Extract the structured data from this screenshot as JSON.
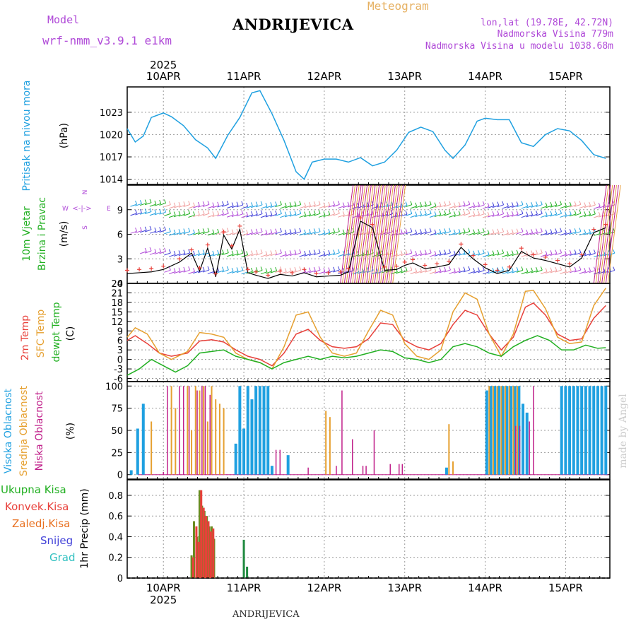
{
  "header": {
    "model_label": "Model",
    "model_name": "wrf-nmm_v3.9.1  e1km",
    "station": "ANDRIJEVICA",
    "title": "Meteogram",
    "lonlat": "lon,lat (19.78E, 42.72N)",
    "altitude": "Nadmorska Visina 779m",
    "model_altitude": "Nadmorska Visina u modelu 1038.68m",
    "footer_station": "ANDRIJEVICA",
    "watermark": "made by Angel"
  },
  "colors": {
    "purple": "#b04ad8",
    "cyan": "#1fa0e0",
    "green": "#22b022",
    "red": "#e8403a",
    "orange": "#e6a030",
    "magenta": "#c0208a",
    "blue": "#4040d8",
    "teal": "#30c0c0"
  },
  "time_axis": {
    "year": "2025",
    "days": [
      "10APR",
      "11APR",
      "12APR",
      "13APR",
      "14APR",
      "15APR"
    ],
    "start_day_offset": -0.45,
    "end_day_offset": 5.55
  },
  "panel_labels": {
    "pressure": [
      "Pritisak na nivou mora",
      "(hPa)"
    ],
    "wind": [
      "10m Vjetar",
      "Brzina i Pravac",
      "(m/s)"
    ],
    "wind_compass": {
      "w": "W",
      "e": "E",
      "n": "N",
      "s": "S"
    },
    "temp": [
      "2m Temp",
      "SFC Temp",
      "dewpt Temp",
      "(C)"
    ],
    "cloud": [
      "Visoka Oblacnost",
      "Srednja Oblacnost",
      "Niska Oblacnost",
      "(%)"
    ],
    "precip_legend": [
      "Ukupna Kisa",
      "Konvek.Kisa",
      "Zaledj.Kisa",
      "Snijeg",
      "Grad"
    ],
    "precip_unit": "1hr Precip (mm)"
  },
  "chart_data": [
    {
      "type": "line",
      "name": "pressure",
      "ylabel": "(hPa)",
      "ylim": [
        1013.3,
        1026.4
      ],
      "yticks": [
        1014,
        1017,
        1020,
        1023
      ],
      "grid": true,
      "series": [
        {
          "name": "Pritisak na nivou mora",
          "x": [
            -0.45,
            -0.35,
            -0.25,
            -0.15,
            0,
            0.1,
            0.25,
            0.4,
            0.55,
            0.65,
            0.8,
            0.95,
            1.0,
            1.1,
            1.2,
            1.35,
            1.5,
            1.65,
            1.75,
            1.85,
            2.0,
            2.15,
            2.3,
            2.45,
            2.6,
            2.75,
            2.9,
            3.05,
            3.2,
            3.35,
            3.5,
            3.6,
            3.75,
            3.9,
            4.0,
            4.15,
            4.3,
            4.45,
            4.6,
            4.75,
            4.9,
            5.05,
            5.2,
            5.35,
            5.5
          ],
          "y": [
            1020.8,
            1019.0,
            1019.8,
            1022.3,
            1022.9,
            1022.4,
            1021.2,
            1019.3,
            1018.2,
            1016.8,
            1019.9,
            1022.3,
            1023.4,
            1025.6,
            1025.9,
            1022.8,
            1019.2,
            1015.0,
            1014.0,
            1016.3,
            1016.7,
            1016.7,
            1016.3,
            1016.9,
            1015.8,
            1016.3,
            1017.9,
            1020.3,
            1021.0,
            1020.4,
            1017.9,
            1016.8,
            1018.6,
            1021.8,
            1022.2,
            1022.0,
            1022.0,
            1018.9,
            1018.4,
            1020.0,
            1020.8,
            1020.5,
            1019.2,
            1017.3,
            1016.8
          ]
        }
      ]
    },
    {
      "type": "line",
      "name": "wind",
      "ylabel": "(m/s)",
      "ylim": [
        0,
        12
      ],
      "yticks": [
        0,
        3,
        6,
        9
      ],
      "grid": true,
      "series": [
        {
          "name": "wind speed",
          "x": [
            -0.45,
            -0.3,
            -0.15,
            0,
            0.2,
            0.35,
            0.45,
            0.55,
            0.65,
            0.75,
            0.85,
            0.95,
            1.05,
            1.15,
            1.3,
            1.45,
            1.6,
            1.75,
            1.9,
            2.05,
            2.2,
            2.3,
            2.45,
            2.6,
            2.75,
            2.9,
            3.0,
            3.1,
            3.25,
            3.4,
            3.55,
            3.7,
            3.85,
            4.0,
            4.15,
            4.3,
            4.45,
            4.6,
            4.75,
            4.9,
            5.05,
            5.2,
            5.35,
            5.5
          ],
          "y": [
            1.2,
            1.3,
            1.4,
            1.7,
            2.6,
            3.7,
            1.5,
            4.3,
            0.8,
            5.9,
            4.2,
            6.6,
            1.3,
            1.0,
            0.6,
            1.1,
            0.9,
            1.3,
            0.8,
            0.9,
            1.0,
            1.4,
            7.6,
            6.8,
            1.6,
            1.7,
            2.2,
            2.5,
            1.8,
            2.0,
            2.3,
            4.4,
            3.0,
            1.9,
            1.2,
            1.6,
            3.9,
            3.1,
            2.8,
            2.4,
            2.0,
            3.1,
            6.2,
            6.8
          ]
        }
      ]
    },
    {
      "type": "line",
      "name": "temperature",
      "ylabel": "(C)",
      "ylim": [
        -7,
        24
      ],
      "yticks": [
        -6,
        -3,
        0,
        3,
        6,
        9,
        12,
        15,
        18,
        21,
        24
      ],
      "grid": true,
      "series": [
        {
          "name": "2m Temp",
          "x": [
            -0.45,
            -0.35,
            -0.2,
            -0.05,
            0.1,
            0.3,
            0.45,
            0.6,
            0.75,
            0.9,
            1.05,
            1.2,
            1.35,
            1.5,
            1.65,
            1.8,
            1.95,
            2.1,
            2.25,
            2.4,
            2.55,
            2.7,
            2.85,
            3.0,
            3.15,
            3.3,
            3.45,
            3.6,
            3.75,
            3.9,
            4.05,
            4.2,
            4.35,
            4.5,
            4.6,
            4.75,
            4.9,
            5.05,
            5.2,
            5.35,
            5.5
          ],
          "y": [
            6,
            7.5,
            5,
            2,
            1,
            2,
            5.8,
            6.2,
            5.5,
            3,
            1,
            0,
            -2,
            2,
            8,
            9.5,
            6,
            4,
            3.5,
            4,
            6.5,
            11.5,
            11,
            6,
            4,
            3,
            5,
            11,
            15.5,
            14,
            8,
            3,
            7,
            16.5,
            17.8,
            14,
            8,
            6,
            6.5,
            13,
            17
          ]
        },
        {
          "name": "SFC Temp",
          "x": [
            -0.45,
            -0.35,
            -0.2,
            -0.05,
            0.1,
            0.3,
            0.45,
            0.6,
            0.75,
            0.9,
            1.05,
            1.2,
            1.35,
            1.5,
            1.65,
            1.8,
            1.95,
            2.1,
            2.25,
            2.4,
            2.55,
            2.7,
            2.85,
            3.0,
            3.15,
            3.3,
            3.45,
            3.6,
            3.75,
            3.9,
            4.05,
            4.2,
            4.35,
            4.5,
            4.6,
            4.75,
            4.9,
            5.05,
            5.2,
            5.35,
            5.5
          ],
          "y": [
            7,
            10,
            8,
            2,
            0,
            2.5,
            8.5,
            8,
            7,
            2,
            0,
            -1,
            -3,
            4,
            14,
            15,
            7,
            2,
            1,
            2,
            9,
            15.5,
            14,
            5,
            1,
            0,
            3,
            15,
            21,
            19,
            8,
            1,
            8,
            21.5,
            21.8,
            16,
            7,
            5,
            5.5,
            17,
            22.5
          ]
        },
        {
          "name": "dewpt Temp",
          "x": [
            -0.45,
            -0.3,
            -0.15,
            0,
            0.15,
            0.3,
            0.45,
            0.6,
            0.75,
            0.9,
            1.05,
            1.2,
            1.35,
            1.5,
            1.65,
            1.8,
            1.95,
            2.1,
            2.25,
            2.4,
            2.55,
            2.7,
            2.85,
            3.0,
            3.15,
            3.3,
            3.45,
            3.6,
            3.75,
            3.9,
            4.05,
            4.2,
            4.35,
            4.5,
            4.65,
            4.8,
            4.95,
            5.1,
            5.25,
            5.4,
            5.5
          ],
          "y": [
            -5,
            -3,
            0,
            -2,
            -4,
            -2,
            2,
            2.5,
            3,
            1,
            0,
            -1,
            -3,
            -1,
            0,
            1,
            0,
            1,
            0.5,
            1,
            2,
            3,
            2.5,
            0.5,
            0,
            -1,
            0,
            4,
            5,
            4,
            2,
            1,
            4,
            6,
            7.5,
            6,
            3,
            3,
            4.5,
            3.5,
            3.7
          ]
        }
      ]
    },
    {
      "type": "bar",
      "name": "cloud_cover",
      "ylabel": "(%)",
      "ylim": [
        -5,
        105
      ],
      "yticks": [
        0,
        25,
        50,
        75,
        100
      ],
      "grid": true,
      "series": [
        {
          "name": "Visoka Oblacnost",
          "x": [
            -0.4,
            -0.32,
            -0.25,
            0.9,
            0.95,
            1.0,
            1.05,
            1.1,
            1.15,
            1.2,
            1.25,
            1.3,
            1.35,
            1.55,
            3.52,
            4.02,
            4.07,
            4.12,
            4.17,
            4.22,
            4.27,
            4.32,
            4.37,
            4.42,
            4.47,
            4.52,
            4.95,
            5.0,
            5.05,
            5.1,
            5.15,
            5.2,
            5.25,
            5.3,
            5.35,
            5.4,
            5.45,
            5.5
          ],
          "y": [
            5,
            52,
            80,
            35,
            100,
            52,
            100,
            85,
            100,
            100,
            100,
            100,
            10,
            22,
            8,
            95,
            100,
            100,
            100,
            100,
            100,
            100,
            100,
            100,
            80,
            70,
            100,
            100,
            100,
            100,
            100,
            100,
            100,
            100,
            100,
            100,
            100,
            100
          ]
        },
        {
          "name": "Srednja Oblacnost",
          "x": [
            -0.15,
            0.1,
            0.15,
            0.3,
            0.35,
            0.4,
            0.45,
            0.5,
            0.55,
            0.6,
            0.65,
            0.7,
            0.75,
            2.02,
            2.07,
            3.55,
            3.6,
            4.05,
            4.1,
            4.15,
            4.2,
            4.25,
            4.3,
            4.35,
            4.4
          ],
          "y": [
            60,
            100,
            75,
            100,
            50,
            100,
            95,
            100,
            60,
            100,
            85,
            80,
            75,
            72,
            65,
            57,
            15,
            100,
            100,
            100,
            100,
            100,
            100,
            100,
            100
          ]
        },
        {
          "name": "Niska Oblacnost",
          "x": [
            0.0,
            0.05,
            0.2,
            0.25,
            0.32,
            0.42,
            0.48,
            0.52,
            0.58,
            1.4,
            1.45,
            1.8,
            2.15,
            2.22,
            2.35,
            2.48,
            2.52,
            2.62,
            2.82,
            2.93,
            2.97,
            4.38,
            4.43,
            4.55,
            4.6
          ],
          "y": [
            3,
            100,
            100,
            100,
            100,
            95,
            100,
            100,
            90,
            28,
            28,
            8,
            10,
            95,
            40,
            10,
            10,
            50,
            12,
            12,
            12,
            55,
            55,
            60,
            100
          ]
        }
      ]
    },
    {
      "type": "bar",
      "name": "precipitation",
      "ylabel": "1hr Precip (mm)",
      "ylim": [
        0,
        0.95
      ],
      "yticks": [
        0,
        0.2,
        0.4,
        0.6,
        0.8
      ],
      "grid": true,
      "series": [
        {
          "name": "Ukupna Kisa",
          "x": [
            0.35,
            0.38,
            0.42,
            0.45,
            0.48,
            0.51,
            0.54,
            0.57,
            0.6,
            0.63,
            1.0,
            1.04
          ],
          "y": [
            0.22,
            0.55,
            0.4,
            0.85,
            0.7,
            0.65,
            0.6,
            0.5,
            0.5,
            0.38,
            0.37,
            0.11
          ]
        },
        {
          "name": "Konvek.Kisa",
          "x": [
            0.37,
            0.41,
            0.44,
            0.47,
            0.5,
            0.53,
            0.56,
            0.59,
            0.62
          ],
          "y": [
            0.2,
            0.5,
            0.35,
            0.85,
            0.68,
            0.6,
            0.55,
            0.45,
            0.48
          ]
        }
      ]
    }
  ]
}
